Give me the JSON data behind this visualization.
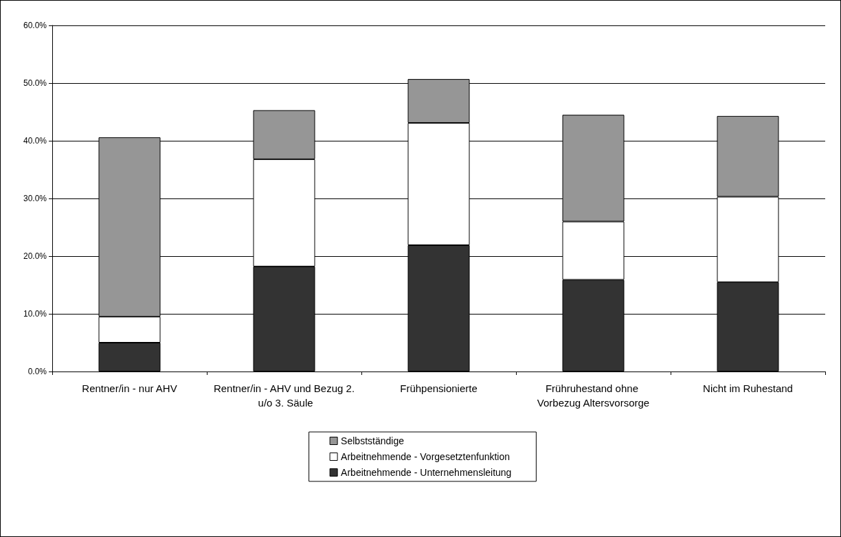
{
  "chart_data": {
    "type": "bar",
    "stacked": true,
    "categories": [
      "Rentner/in - nur AHV",
      "Rentner/in - AHV und Bezug 2. u/o 3. Säule",
      "Frühpensionierte",
      "Frühruhestand ohne Vorbezug Altersvorsorge",
      "Nicht im Ruhestand"
    ],
    "series": [
      {
        "name": "Arbeitnehmende - Unternehmensleitung",
        "color": "#333333",
        "values": [
          5.0,
          18.2,
          21.9,
          15.9,
          15.5
        ]
      },
      {
        "name": "Arbeitnehmende - Vorgesetztenfunktion",
        "color": "#ffffff",
        "values": [
          4.5,
          18.6,
          21.2,
          10.1,
          14.8
        ]
      },
      {
        "name": "Selbstständige",
        "color": "#969696",
        "values": [
          31.1,
          8.5,
          7.6,
          18.5,
          14.0
        ]
      }
    ],
    "ylim": [
      0,
      60
    ],
    "yticks": [
      {
        "value": 0,
        "label": "0.0%"
      },
      {
        "value": 10,
        "label": "10.0%"
      },
      {
        "value": 20,
        "label": "20.0%"
      },
      {
        "value": 30,
        "label": "30.0%"
      },
      {
        "value": 40,
        "label": "40.0%"
      },
      {
        "value": 50,
        "label": "50.0%"
      },
      {
        "value": 60,
        "label": "60.0%"
      }
    ],
    "grid": "y",
    "legend": "bottom"
  }
}
